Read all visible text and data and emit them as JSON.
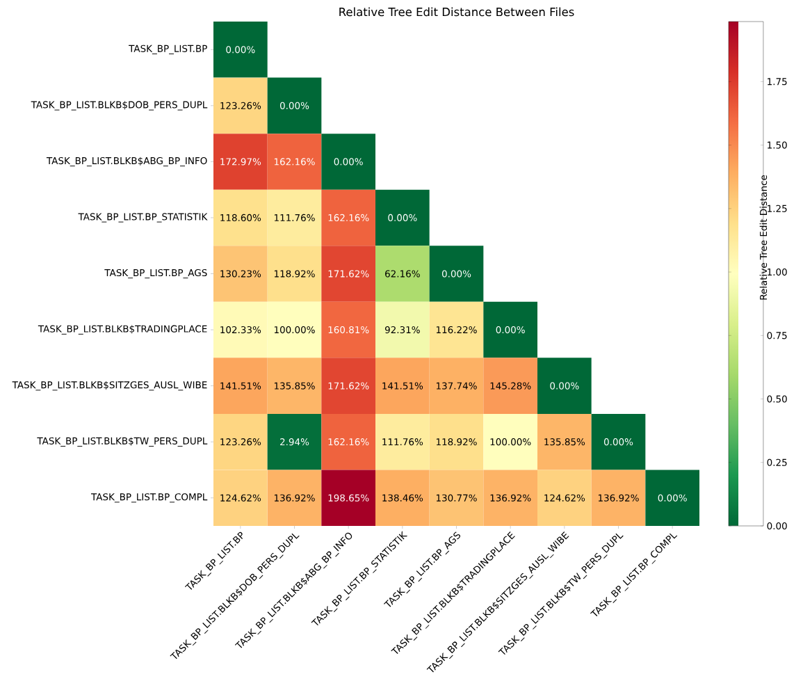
{
  "chart_data": {
    "type": "heatmap",
    "title": "Relative Tree Edit Distance Between Files",
    "categories": [
      "TASK_BP_LIST.BP",
      "TASK_BP_LIST.BLKB$DOB_PERS_DUPL",
      "TASK_BP_LIST.BLKB$ABG_BP_INFO",
      "TASK_BP_LIST.BP_STATISTIK",
      "TASK_BP_LIST.BP_AGS",
      "TASK_BP_LIST.BLKB$TRADINGPLACE",
      "TASK_BP_LIST.BLKB$SITZGES_AUSL_WIBE",
      "TASK_BP_LIST.BLKB$TW_PERS_DUPL",
      "TASK_BP_LIST.BP_COMPL"
    ],
    "y_categories": [
      "TASK_BP_LIST.BP",
      "TASK_BP_LIST.BLKB$DOB_PERS_DUPL",
      "TASK_BP_LIST.BLKB$ABG_BP_INFO",
      "TASK_BP_LIST.BP_STATISTIK",
      "TASK_BP_LIST.BP_AGS",
      "TASK_BP_LIST.BLKB$TRADINGPLACE",
      "TASK_BP_LIST.BLKB$SITZGES_AUSL_WIBE",
      "TASK_BP_LIST.BLKB$TW_PERS_DUPL",
      "TASK_BP_LIST.BP_COMPL"
    ],
    "cells": [
      [
        0,
        null,
        null,
        null,
        null,
        null,
        null,
        null,
        null
      ],
      [
        1.2326,
        0,
        null,
        null,
        null,
        null,
        null,
        null,
        null
      ],
      [
        1.7297,
        1.6216,
        0,
        null,
        null,
        null,
        null,
        null,
        null
      ],
      [
        1.186,
        1.1176,
        1.6216,
        0,
        null,
        null,
        null,
        null,
        null
      ],
      [
        1.3023,
        1.1892,
        1.7162,
        0.6216,
        0,
        null,
        null,
        null,
        null
      ],
      [
        1.0233,
        1.0,
        1.6081,
        0.9231,
        1.1622,
        0,
        null,
        null,
        null
      ],
      [
        1.4151,
        1.3585,
        1.7162,
        1.4151,
        1.3774,
        1.4528,
        0,
        null,
        null
      ],
      [
        1.2326,
        0.0294,
        1.6216,
        1.1176,
        1.1892,
        1.0,
        1.3585,
        0,
        null
      ],
      [
        1.2462,
        1.3692,
        1.9865,
        1.3846,
        1.3077,
        1.3692,
        1.2462,
        1.3692,
        0
      ]
    ],
    "cell_labels": [
      [
        "0.00%",
        null,
        null,
        null,
        null,
        null,
        null,
        null,
        null
      ],
      [
        "123.26%",
        "0.00%",
        null,
        null,
        null,
        null,
        null,
        null,
        null
      ],
      [
        "172.97%",
        "162.16%",
        "0.00%",
        null,
        null,
        null,
        null,
        null,
        null
      ],
      [
        "118.60%",
        "111.76%",
        "162.16%",
        "0.00%",
        null,
        null,
        null,
        null,
        null
      ],
      [
        "130.23%",
        "118.92%",
        "171.62%",
        "62.16%",
        "0.00%",
        null,
        null,
        null,
        null
      ],
      [
        "102.33%",
        "100.00%",
        "160.81%",
        "92.31%",
        "116.22%",
        "0.00%",
        null,
        null,
        null
      ],
      [
        "141.51%",
        "135.85%",
        "171.62%",
        "141.51%",
        "137.74%",
        "145.28%",
        "0.00%",
        null,
        null
      ],
      [
        "123.26%",
        "2.94%",
        "162.16%",
        "111.76%",
        "118.92%",
        "100.00%",
        "135.85%",
        "0.00%",
        null
      ],
      [
        "124.62%",
        "136.92%",
        "198.65%",
        "138.46%",
        "130.77%",
        "136.92%",
        "124.62%",
        "136.92%",
        "0.00%"
      ]
    ],
    "clim": [
      0,
      1.9865
    ],
    "cticks": [
      {
        "value": 0,
        "label": "0.00"
      },
      {
        "value": 0.25,
        "label": "0.25"
      },
      {
        "value": 0.5,
        "label": "0.50"
      },
      {
        "value": 0.75,
        "label": "0.75"
      },
      {
        "value": 1.0,
        "label": "1.00"
      },
      {
        "value": 1.25,
        "label": "1.25"
      },
      {
        "value": 1.5,
        "label": "1.50"
      },
      {
        "value": 1.75,
        "label": "1.75"
      }
    ],
    "clabel": "Relative Tree Edit Distance"
  }
}
